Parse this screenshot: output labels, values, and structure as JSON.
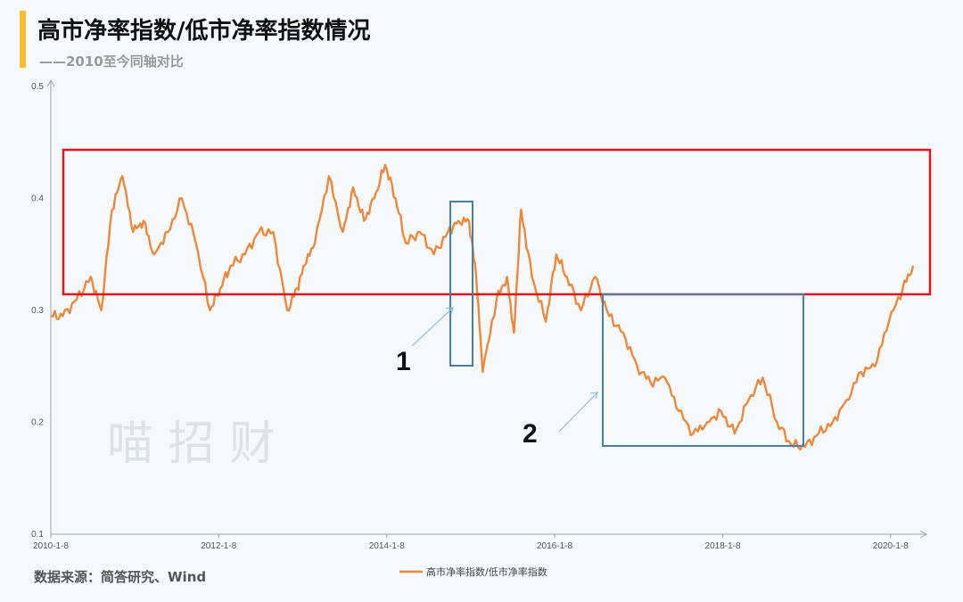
{
  "title": "高市净率指数/低市净率指数情况",
  "subtitle": "——2010至今同轴对比",
  "source": "数据来源：简答研究、Wind",
  "watermark": "喵 招 财",
  "annotations": {
    "label1": "1",
    "label2": "2"
  },
  "colors": {
    "line": "#f0883a",
    "red_box": "#e8141c",
    "blue_box": "#4a7ea8",
    "arrow": "#8fbde0",
    "accent": "#f8c12a"
  },
  "chart_data": {
    "type": "line",
    "title": "高市净率指数/低市净率指数情况",
    "xlabel": "",
    "ylabel": "",
    "ylim": [
      0.1,
      0.5
    ],
    "yticks": [
      "0.1",
      "0.2",
      "0.3",
      "0.4",
      "0.5"
    ],
    "xlim": [
      "2010-1-8",
      "2020-5-8"
    ],
    "xticks": [
      "2010-1-8",
      "2012-1-8",
      "2014-1-8",
      "2016-1-8",
      "2018-1-8",
      "2020-1-8"
    ],
    "grid": false,
    "legend": "bottom-center",
    "series": [
      {
        "name": "高市净率指数/低市净率指数",
        "x": [
          "2010-01-08",
          "2010-03-01",
          "2010-05-01",
          "2010-07-01",
          "2010-08-15",
          "2010-10-01",
          "2010-11-15",
          "2011-01-01",
          "2011-02-15",
          "2011-04-01",
          "2011-06-01",
          "2011-08-01",
          "2011-10-01",
          "2011-12-01",
          "2012-01-15",
          "2012-03-01",
          "2012-05-01",
          "2012-07-01",
          "2012-09-01",
          "2012-11-01",
          "2012-12-15",
          "2013-01-15",
          "2013-03-01",
          "2013-05-01",
          "2013-07-01",
          "2013-08-15",
          "2013-10-01",
          "2013-11-15",
          "2014-01-01",
          "2014-02-15",
          "2014-04-01",
          "2014-06-01",
          "2014-08-01",
          "2014-10-01",
          "2014-11-15",
          "2015-01-01",
          "2015-02-01",
          "2015-03-01",
          "2015-05-01",
          "2015-06-15",
          "2015-07-15",
          "2015-08-15",
          "2015-10-01",
          "2015-12-01",
          "2016-01-15",
          "2016-03-01",
          "2016-05-01",
          "2016-07-01",
          "2016-09-01",
          "2016-11-01",
          "2017-01-01",
          "2017-03-01",
          "2017-05-01",
          "2017-07-01",
          "2017-09-01",
          "2017-11-01",
          "2018-01-01",
          "2018-03-01",
          "2018-05-01",
          "2018-07-01",
          "2018-09-01",
          "2018-11-01",
          "2019-01-01",
          "2019-03-01",
          "2019-05-01",
          "2019-07-01",
          "2019-09-01",
          "2019-11-01",
          "2020-01-01",
          "2020-03-01",
          "2020-04-15"
        ],
        "values": [
          0.295,
          0.295,
          0.31,
          0.33,
          0.3,
          0.39,
          0.42,
          0.37,
          0.38,
          0.35,
          0.37,
          0.4,
          0.36,
          0.3,
          0.32,
          0.34,
          0.35,
          0.37,
          0.37,
          0.3,
          0.32,
          0.34,
          0.36,
          0.42,
          0.37,
          0.41,
          0.38,
          0.4,
          0.43,
          0.4,
          0.36,
          0.37,
          0.35,
          0.37,
          0.38,
          0.38,
          0.33,
          0.245,
          0.31,
          0.33,
          0.28,
          0.39,
          0.33,
          0.29,
          0.35,
          0.33,
          0.3,
          0.33,
          0.295,
          0.28,
          0.25,
          0.235,
          0.24,
          0.21,
          0.19,
          0.2,
          0.21,
          0.19,
          0.22,
          0.24,
          0.2,
          0.18,
          0.178,
          0.19,
          0.2,
          0.22,
          0.245,
          0.25,
          0.29,
          0.32,
          0.34
        ]
      }
    ]
  }
}
